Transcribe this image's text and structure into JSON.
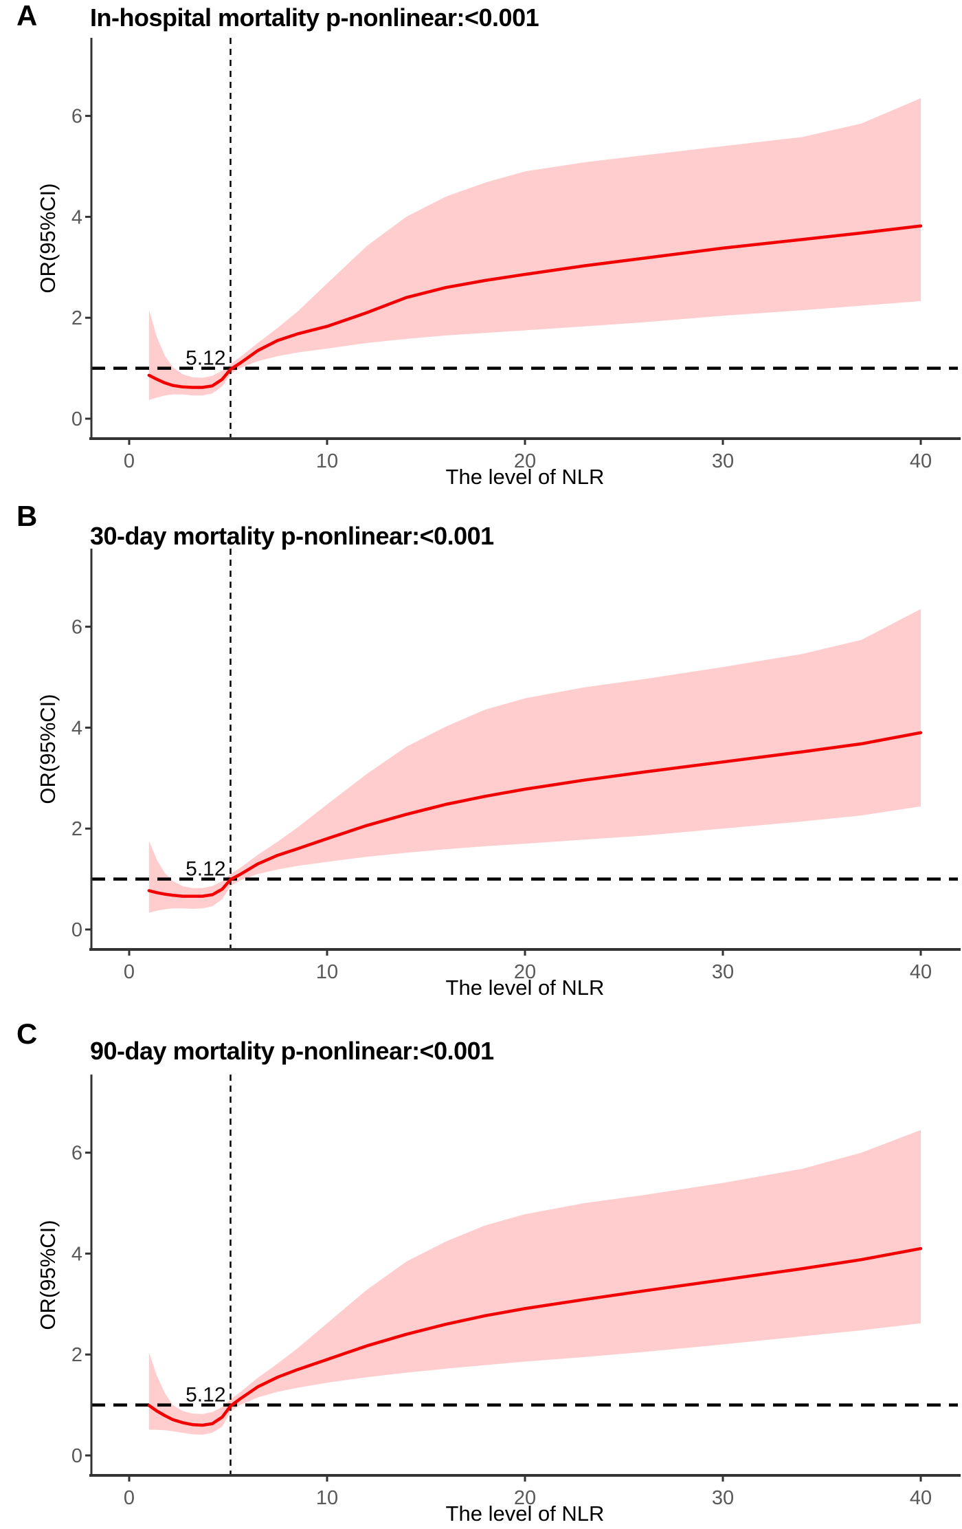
{
  "figure": {
    "xlabel": "The level of NLR",
    "ylabel": "OR(95%CI)",
    "x_ticks": [
      0,
      10,
      20,
      30,
      40
    ],
    "y_ticks": [
      0,
      2,
      4,
      6
    ],
    "reference_or": 1,
    "knot_value": 5.12,
    "knot_label": "5.12",
    "colors": {
      "curve": "#f20000",
      "band": "#ffcdcd",
      "dashed": "#000000",
      "axis": "#333333",
      "tick_text": "#595959",
      "title_text": "#000000"
    }
  },
  "panels": [
    {
      "letter": "A",
      "title": "In-hospital mortality p-nonlinear:<0.001"
    },
    {
      "letter": "B",
      "title": "30-day mortality p-nonlinear:<0.001"
    },
    {
      "letter": "C",
      "title": "90-day mortality p-nonlinear:<0.001"
    }
  ],
  "chart_data": [
    {
      "type": "line",
      "title": "In-hospital mortality p-nonlinear:<0.001",
      "xlabel": "The level of NLR",
      "ylabel": "OR(95%CI)",
      "xlim": [
        -2,
        42
      ],
      "ylim": [
        -0.4,
        7.5
      ],
      "x_ticks": [
        0,
        10,
        20,
        30,
        40
      ],
      "y_ticks": [
        0,
        2,
        4,
        6
      ],
      "annotations": {
        "vline_x": 5.12,
        "vline_label": "5.12",
        "hline_y": 1
      },
      "x": [
        1,
        1.4,
        1.8,
        2.2,
        2.7,
        3.2,
        3.7,
        4.2,
        4.7,
        5.12,
        5.6,
        6.5,
        7.5,
        8.5,
        10,
        12,
        14,
        16,
        18,
        20,
        23,
        26,
        30,
        34,
        37,
        40
      ],
      "series": [
        {
          "name": "OR",
          "values": [
            0.86,
            0.78,
            0.71,
            0.66,
            0.63,
            0.62,
            0.62,
            0.65,
            0.78,
            0.98,
            1.1,
            1.35,
            1.55,
            1.68,
            1.83,
            2.1,
            2.4,
            2.6,
            2.74,
            2.86,
            3.03,
            3.18,
            3.38,
            3.55,
            3.68,
            3.82
          ]
        },
        {
          "name": "CI_upper",
          "values": [
            2.16,
            1.62,
            1.25,
            1.02,
            0.88,
            0.82,
            0.81,
            0.85,
            0.95,
            1.08,
            1.22,
            1.5,
            1.8,
            2.12,
            2.68,
            3.42,
            4.0,
            4.4,
            4.68,
            4.9,
            5.08,
            5.22,
            5.4,
            5.58,
            5.85,
            6.35
          ]
        },
        {
          "name": "CI_lower",
          "values": [
            0.37,
            0.42,
            0.46,
            0.48,
            0.48,
            0.46,
            0.46,
            0.5,
            0.64,
            0.88,
            1.0,
            1.14,
            1.24,
            1.31,
            1.39,
            1.5,
            1.58,
            1.65,
            1.7,
            1.75,
            1.83,
            1.91,
            2.04,
            2.15,
            2.24,
            2.33
          ]
        }
      ]
    },
    {
      "type": "line",
      "title": "30-day mortality p-nonlinear:<0.001",
      "xlabel": "The level of NLR",
      "ylabel": "OR(95%CI)",
      "xlim": [
        -2,
        42
      ],
      "ylim": [
        -0.4,
        7.5
      ],
      "x_ticks": [
        0,
        10,
        20,
        30,
        40
      ],
      "y_ticks": [
        0,
        2,
        4,
        6
      ],
      "annotations": {
        "vline_x": 5.12,
        "vline_label": "5.12",
        "hline_y": 1
      },
      "x": [
        1,
        1.4,
        1.8,
        2.2,
        2.7,
        3.2,
        3.7,
        4.2,
        4.7,
        5.12,
        5.6,
        6.5,
        7.5,
        8.5,
        10,
        12,
        14,
        16,
        18,
        20,
        23,
        26,
        30,
        34,
        37,
        40
      ],
      "series": [
        {
          "name": "OR",
          "values": [
            0.77,
            0.73,
            0.7,
            0.68,
            0.66,
            0.66,
            0.66,
            0.69,
            0.8,
            0.99,
            1.09,
            1.3,
            1.47,
            1.6,
            1.8,
            2.06,
            2.28,
            2.48,
            2.64,
            2.78,
            2.96,
            3.12,
            3.32,
            3.52,
            3.68,
            3.9
          ]
        },
        {
          "name": "CI_upper",
          "values": [
            1.76,
            1.38,
            1.12,
            0.96,
            0.86,
            0.82,
            0.82,
            0.86,
            0.96,
            1.1,
            1.22,
            1.48,
            1.74,
            2.02,
            2.48,
            3.08,
            3.62,
            4.02,
            4.36,
            4.58,
            4.8,
            4.96,
            5.2,
            5.46,
            5.74,
            6.35
          ]
        },
        {
          "name": "CI_lower",
          "values": [
            0.33,
            0.37,
            0.4,
            0.42,
            0.42,
            0.41,
            0.42,
            0.46,
            0.6,
            0.86,
            0.97,
            1.1,
            1.19,
            1.26,
            1.34,
            1.44,
            1.52,
            1.59,
            1.65,
            1.7,
            1.78,
            1.86,
            2.0,
            2.14,
            2.26,
            2.44
          ]
        }
      ]
    },
    {
      "type": "line",
      "title": "90-day mortality p-nonlinear:<0.001",
      "xlabel": "The level of NLR",
      "ylabel": "OR(95%CI)",
      "xlim": [
        -2,
        42
      ],
      "ylim": [
        -0.4,
        7.5
      ],
      "x_ticks": [
        0,
        10,
        20,
        30,
        40
      ],
      "y_ticks": [
        0,
        2,
        4,
        6
      ],
      "annotations": {
        "vline_x": 5.12,
        "vline_label": "5.12",
        "hline_y": 1
      },
      "x": [
        1,
        1.4,
        1.8,
        2.2,
        2.7,
        3.2,
        3.7,
        4.2,
        4.7,
        5.12,
        5.6,
        6.5,
        7.5,
        8.5,
        10,
        12,
        14,
        16,
        18,
        20,
        23,
        26,
        30,
        34,
        37,
        40
      ],
      "series": [
        {
          "name": "OR",
          "values": [
            0.99,
            0.88,
            0.79,
            0.71,
            0.65,
            0.61,
            0.6,
            0.63,
            0.76,
            0.98,
            1.12,
            1.36,
            1.55,
            1.7,
            1.9,
            2.17,
            2.4,
            2.6,
            2.77,
            2.91,
            3.09,
            3.26,
            3.48,
            3.7,
            3.88,
            4.1
          ]
        },
        {
          "name": "CI_upper",
          "values": [
            2.04,
            1.58,
            1.24,
            1.0,
            0.88,
            0.83,
            0.82,
            0.86,
            0.96,
            1.11,
            1.25,
            1.54,
            1.82,
            2.12,
            2.62,
            3.28,
            3.84,
            4.24,
            4.56,
            4.78,
            5.0,
            5.16,
            5.4,
            5.68,
            6.0,
            6.45
          ]
        },
        {
          "name": "CI_lower",
          "values": [
            0.51,
            0.51,
            0.5,
            0.48,
            0.45,
            0.42,
            0.41,
            0.45,
            0.57,
            0.87,
            1.0,
            1.15,
            1.26,
            1.34,
            1.44,
            1.55,
            1.64,
            1.72,
            1.79,
            1.86,
            1.95,
            2.05,
            2.2,
            2.36,
            2.48,
            2.62
          ]
        }
      ]
    }
  ]
}
